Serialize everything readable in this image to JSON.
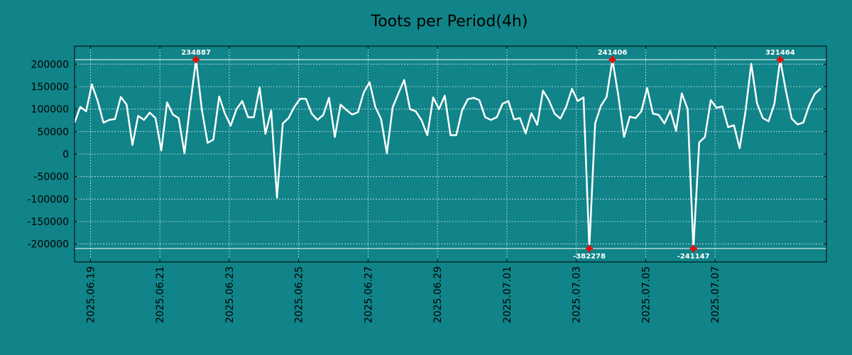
{
  "chart_data": {
    "type": "line",
    "title": "Toots per Period(4h)",
    "xlabel": "",
    "ylabel": "",
    "ylim": [
      -240000,
      240000
    ],
    "y_ticks": [
      200000,
      150000,
      100000,
      50000,
      0,
      -50000,
      -100000,
      -150000,
      -200000
    ],
    "y_tick_labels": [
      "200000",
      "150000",
      "100000",
      "50000",
      "0",
      "-50000",
      "-100000",
      "-150000",
      "-200000"
    ],
    "x_ticks": [
      "2025.06.19",
      "2025.06.21",
      "2025.06.23",
      "2025.06.25",
      "2025.06.27",
      "2025.06.29",
      "2025.07.01",
      "2025.07.03",
      "2025.07.05",
      "2025.07.07"
    ],
    "x_tick_positions": [
      2.75,
      14.75,
      26.75,
      38.75,
      50.75,
      62.75,
      74.75,
      86.75,
      98.75,
      110.75
    ],
    "x_range": [
      0,
      130
    ],
    "clip_limits": [
      210000,
      -210000
    ],
    "series": [
      {
        "name": "Toots",
        "color": "#ffffff",
        "values": [
          70000,
          105000,
          95000,
          155000,
          118000,
          70000,
          76000,
          78000,
          127000,
          110000,
          20000,
          85000,
          76000,
          92000,
          80000,
          8000,
          115000,
          88000,
          80000,
          2000,
          110000,
          210000,
          100000,
          25000,
          32000,
          128000,
          90000,
          63000,
          100000,
          118000,
          82000,
          82000,
          148000,
          45000,
          97000,
          -97000,
          68000,
          80000,
          105000,
          123000,
          123000,
          90000,
          76000,
          87000,
          125000,
          38000,
          110000,
          98000,
          88000,
          93000,
          137000,
          160000,
          105000,
          78000,
          2000,
          104000,
          135000,
          165000,
          100000,
          95000,
          75000,
          42000,
          126000,
          100000,
          130000,
          42000,
          42000,
          97000,
          122000,
          125000,
          120000,
          82000,
          76000,
          82000,
          112000,
          118000,
          77000,
          80000,
          46000,
          91000,
          65000,
          141000,
          120000,
          90000,
          79000,
          105000,
          145000,
          118000,
          126000,
          -210000,
          68000,
          107000,
          127000,
          210000,
          132000,
          38000,
          83000,
          80000,
          95000,
          147000,
          90000,
          87000,
          68000,
          97000,
          52000,
          135000,
          100000,
          -210000,
          26000,
          38000,
          120000,
          103000,
          106000,
          60000,
          64000,
          13000,
          95000,
          201000,
          113000,
          80000,
          73000,
          112000,
          210000,
          140000,
          79000,
          66000,
          70000,
          108000,
          134000,
          146000
        ]
      }
    ],
    "annotations": [
      {
        "label": "234887",
        "index": 21,
        "value": 210000,
        "side": "above"
      },
      {
        "label": "241406",
        "index": 93,
        "value": 210000,
        "side": "above"
      },
      {
        "label": "321464",
        "index": 122,
        "value": 210000,
        "side": "above"
      },
      {
        "label": "-382278",
        "index": 89,
        "value": -210000,
        "side": "below"
      },
      {
        "label": "-241147",
        "index": 107,
        "value": -210000,
        "side": "below"
      }
    ],
    "grid": true,
    "colors": {
      "background": "#108488",
      "line": "#ffffff",
      "marker": "#ff0000",
      "grid": "#c8e4e4",
      "text": "#000000"
    }
  }
}
